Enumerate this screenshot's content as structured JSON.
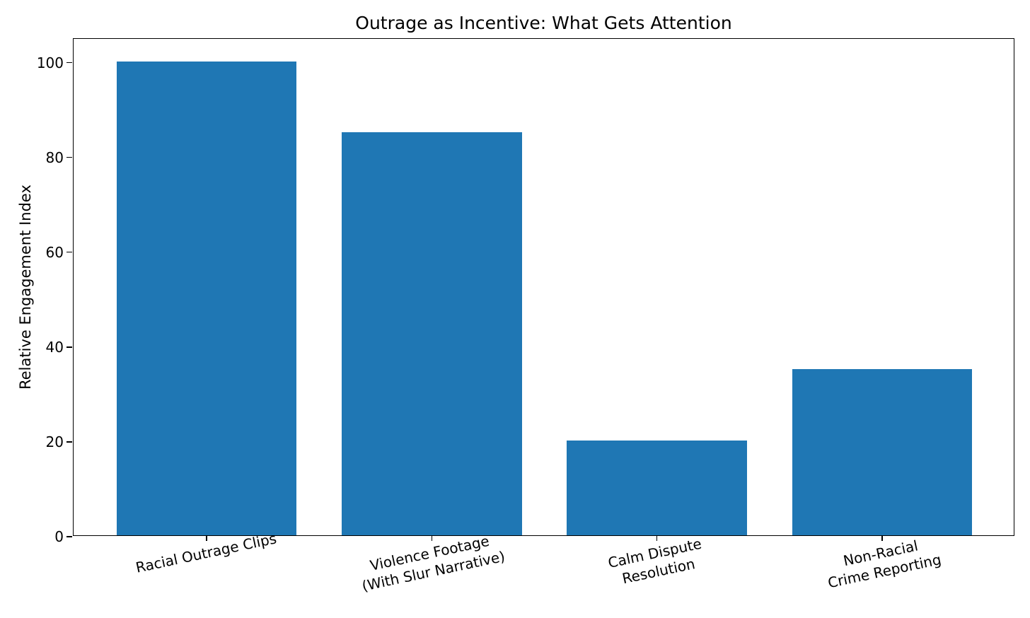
{
  "figure": {
    "background_color": "#ffffff",
    "text_color": "#000000"
  },
  "chart_data": {
    "type": "bar",
    "title": "Outrage as Incentive: What Gets Attention",
    "xlabel": "",
    "ylabel": "Relative Engagement Index",
    "categories": [
      "Racial Outrage Clips",
      "Violence Footage\n(With Slur Narrative)",
      "Calm Dispute\nResolution",
      "Non-Racial\nCrime Reporting"
    ],
    "values": [
      100,
      85,
      20,
      35
    ],
    "bar_color": "#1f77b4",
    "bar_width_fraction": 0.8,
    "ylim": [
      0,
      105
    ],
    "yticks": [
      0,
      20,
      40,
      60,
      80,
      100
    ],
    "grid": false,
    "legend_position": "none",
    "x_tick_label_rotation_deg": 12
  }
}
